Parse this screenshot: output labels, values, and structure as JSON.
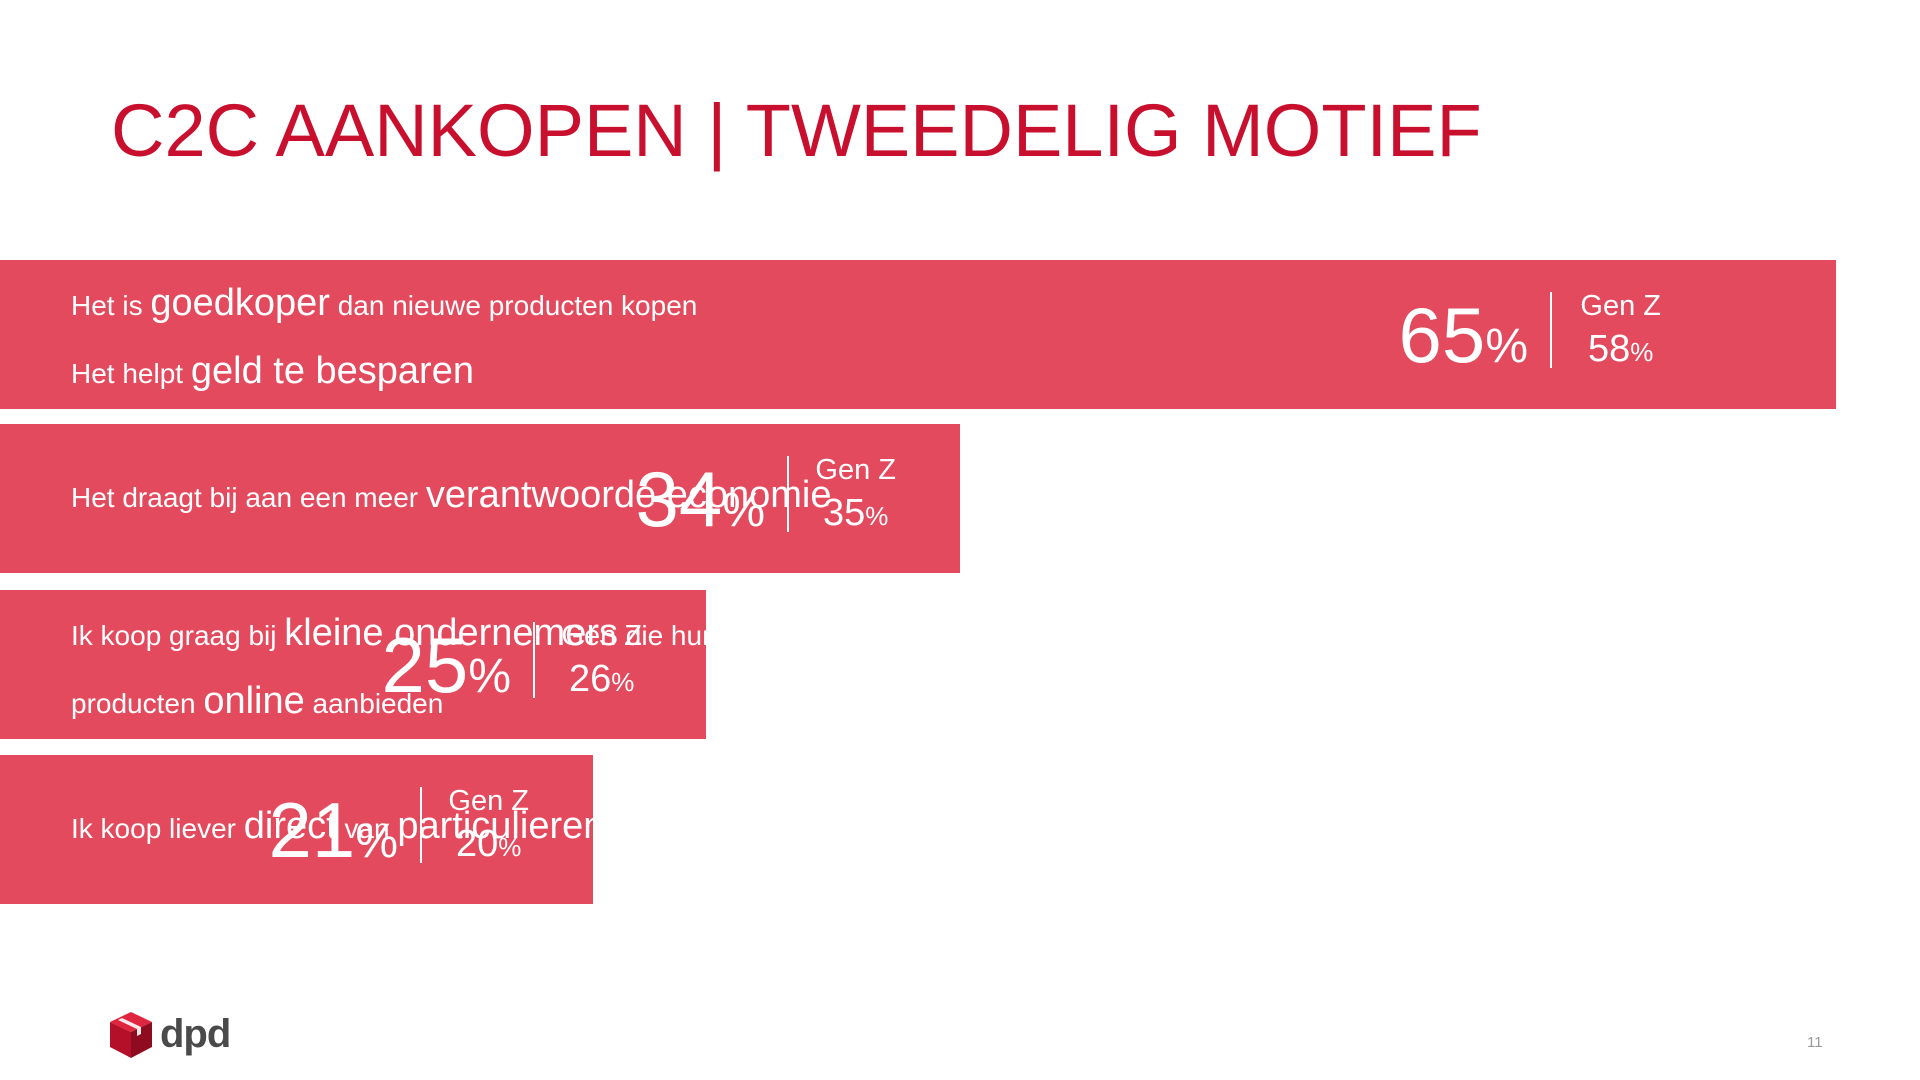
{
  "title": "C2C AANKOPEN | TWEEDELIG MOTIEF",
  "page_number": "11",
  "logo": {
    "text": "dpd",
    "icon": "dpd-cube-icon",
    "color": "#c8102e"
  },
  "colors": {
    "bar": "#e34a5d",
    "title": "#c8102e",
    "text": "#ffffff"
  },
  "chart_data": {
    "type": "bar",
    "orientation": "horizontal",
    "title": "C2C AANKOPEN | TWEEDELIG MOTIEF",
    "categories": [
      "Het is goedkoper dan nieuwe producten kopen / Het helpt geld te besparen",
      "Het draagt bij aan een meer verantwoorde economie",
      "Ik koop graag bij kleine ondernemers die hun producten online aanbieden",
      "Ik koop liever direct van particulieren"
    ],
    "series": [
      {
        "values": [
          65,
          34,
          25,
          21
        ]
      },
      {
        "name": "Gen Z",
        "values": [
          58,
          35,
          26,
          20
        ]
      }
    ],
    "unit": "%"
  },
  "bars": [
    {
      "lines": [
        [
          {
            "t": "Het is ",
            "big": false
          },
          {
            "t": "goedkoper",
            "big": true
          },
          {
            "t": " dan nieuwe producten kopen",
            "big": false
          }
        ],
        [
          {
            "t": "Het helpt ",
            "big": false
          },
          {
            "t": "geld te besparen",
            "big": true
          }
        ]
      ],
      "value": "65",
      "unit": "%",
      "genz_label": "Gen Z",
      "genz_value": "58",
      "genz_unit": "%"
    },
    {
      "lines": [
        [
          {
            "t": "Het draagt bij aan een meer ",
            "big": false
          },
          {
            "t": "verantwoorde economie",
            "big": true
          }
        ]
      ],
      "value": "34",
      "unit": "%",
      "genz_label": "Gen Z",
      "genz_value": "35",
      "genz_unit": "%"
    },
    {
      "lines": [
        [
          {
            "t": "Ik koop graag bij ",
            "big": false
          },
          {
            "t": "kleine ondernemers",
            "big": true
          },
          {
            "t": " die hun",
            "big": false
          }
        ],
        [
          {
            "t": "producten ",
            "big": false
          },
          {
            "t": "online",
            "big": true
          },
          {
            "t": " aanbieden",
            "big": false
          }
        ]
      ],
      "value": "25",
      "unit": "%",
      "genz_label": "Gen Z",
      "genz_value": "26",
      "genz_unit": "%"
    },
    {
      "lines": [
        [
          {
            "t": "Ik koop liever ",
            "big": false
          },
          {
            "t": "direct",
            "big": true
          },
          {
            "t": " van ",
            "big": false
          },
          {
            "t": "particulieren",
            "big": true
          }
        ]
      ],
      "value": "21",
      "unit": "%",
      "genz_label": "Gen Z",
      "genz_value": "20",
      "genz_unit": "%"
    }
  ]
}
